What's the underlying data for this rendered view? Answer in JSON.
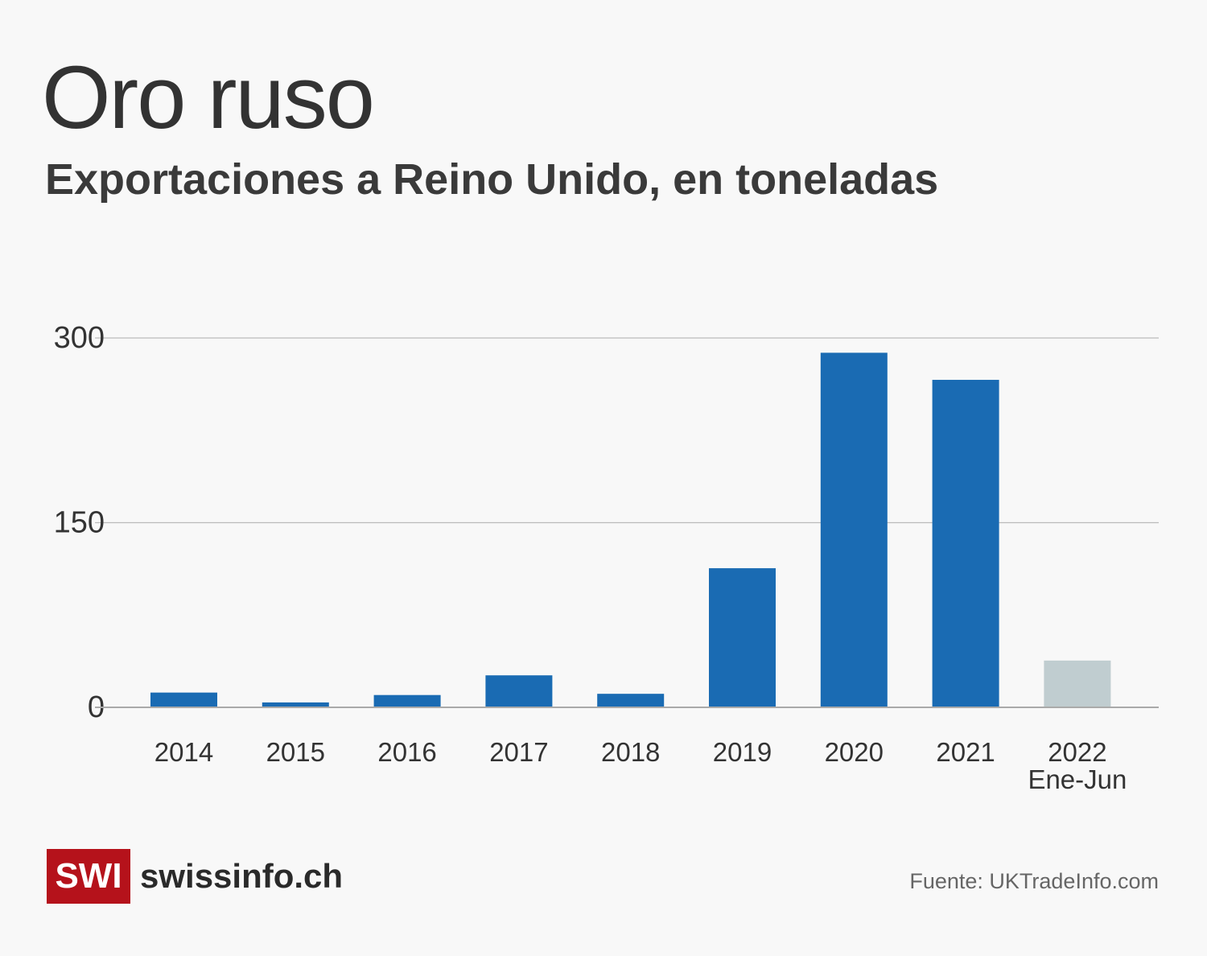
{
  "chart_data": {
    "type": "bar",
    "title": "Oro ruso",
    "subtitle": "Exportaciones a Reino Unido, en toneladas",
    "categories": [
      "2014",
      "2015",
      "2016",
      "2017",
      "2018",
      "2019",
      "2020",
      "2021",
      "2022"
    ],
    "category_sublabels": [
      "",
      "",
      "",
      "",
      "",
      "",
      "",
      "",
      "Ene-Jun"
    ],
    "values": [
      12,
      4,
      10,
      26,
      11,
      113,
      288,
      266,
      38
    ],
    "bar_colors": [
      "#1a6bb3",
      "#1a6bb3",
      "#1a6bb3",
      "#1a6bb3",
      "#1a6bb3",
      "#1a6bb3",
      "#1a6bb3",
      "#1a6bb3",
      "#c0cdd0"
    ],
    "yticks": [
      0,
      150,
      300
    ],
    "ylim": [
      0,
      300
    ],
    "grid": true,
    "xlabel": "",
    "ylabel": ""
  },
  "footer": {
    "logo_mark": "SWI",
    "logo_text": "swissinfo.ch",
    "source": "Fuente: UKTradeInfo.com"
  }
}
